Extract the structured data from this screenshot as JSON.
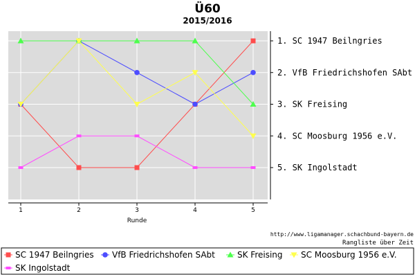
{
  "chart_data": {
    "type": "line",
    "title": "Ü60",
    "subtitle": "2015/2016",
    "xlabel": "Runde",
    "x": [
      1,
      2,
      3,
      4,
      5
    ],
    "ylim": [
      1,
      5
    ],
    "y_inverted": true,
    "grid": true,
    "legend_position": "bottom",
    "rank_labels": [
      "1. SC 1947 Beilngries",
      "2. VfB Friedrichshofen SAbt",
      "3. SK Freising",
      "4. SC Moosburg 1956 e.V.",
      "5. SK Ingolstadt"
    ],
    "series": [
      {
        "name": "SC 1947 Beilngries",
        "color": "#ff4d4d",
        "marker": "square",
        "values": [
          3,
          5,
          5,
          3,
          1
        ]
      },
      {
        "name": "VfB Friedrichshofen SAbt",
        "color": "#4d4dff",
        "marker": "circle",
        "values": [
          3,
          1,
          2,
          3,
          2
        ]
      },
      {
        "name": "SK Freising",
        "color": "#4dff4d",
        "marker": "triangle",
        "values": [
          1,
          1,
          1,
          1,
          3
        ]
      },
      {
        "name": "SC Moosburg 1956 e.V.",
        "color": "#ffff4d",
        "marker": "triangle-down",
        "values": [
          3,
          1,
          3,
          2,
          4
        ]
      },
      {
        "name": "SK Ingolstadt",
        "color": "#ff4dff",
        "marker": "dash",
        "values": [
          5,
          4,
          4,
          5,
          5
        ]
      }
    ]
  },
  "source_url": "http://www.ligamanager.schachbund-bayern.de",
  "footer_note": "Rangliste über Zeit",
  "colors": {
    "plot_background": "#dcdcdc",
    "grid": "#ffffff"
  }
}
